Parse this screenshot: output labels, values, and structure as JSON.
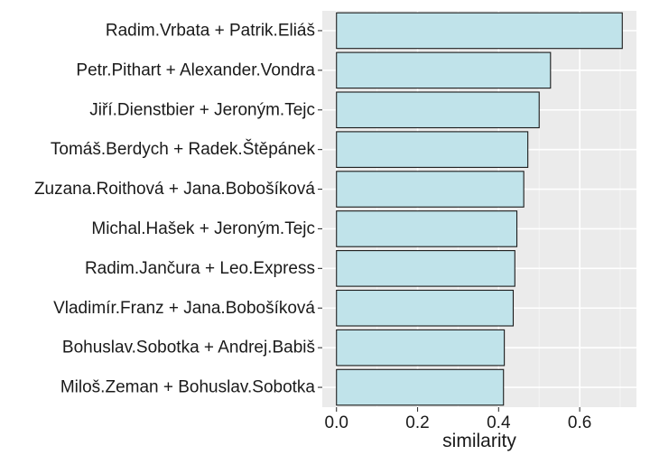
{
  "chart_data": {
    "type": "bar",
    "orientation": "horizontal",
    "categories": [
      "Radim.Vrbata + Patrik.Eliáš",
      "Petr.Pithart + Alexander.Vondra",
      "Jiří.Dienstbier + Jeroným.Tejc",
      "Tomáš.Berdych + Radek.Štěpánek",
      "Zuzana.Roithová + Jana.Bobošíková",
      "Michal.Hašek + Jeroným.Tejc",
      "Radim.Jančura + Leo.Express",
      "Vladimír.Franz + Jana.Bobošíková",
      "Bohuslav.Sobotka + Andrej.Babiš",
      "Miloš.Zeman + Bohuslav.Sobotka"
    ],
    "values": [
      0.705,
      0.528,
      0.5,
      0.472,
      0.462,
      0.445,
      0.44,
      0.436,
      0.414,
      0.412
    ],
    "xlabel": "similarity",
    "ylabel": "",
    "xlim": [
      -0.035,
      0.74
    ],
    "xticks": [
      0,
      0.2,
      0.4,
      0.6
    ],
    "xtick_labels": [
      "0.0",
      "0.2",
      "0.4",
      "0.6"
    ],
    "grid": true,
    "colors": {
      "panel": "#ebebeb",
      "grid_major": "#ffffff",
      "grid_minor": "#f5f5f5",
      "bar_fill": "#c0e3ea",
      "bar_stroke": "#1a1a1a"
    }
  }
}
